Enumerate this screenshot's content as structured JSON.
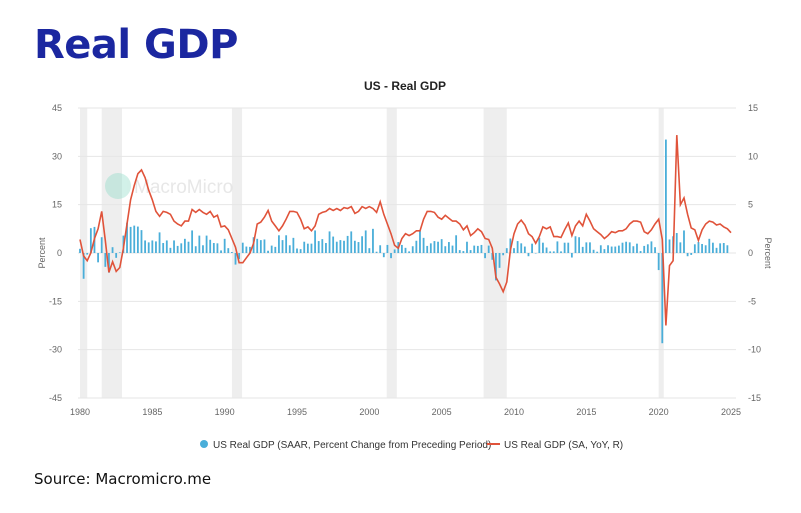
{
  "page": {
    "heading": "Real GDP",
    "source": "Source: Macromicro.me",
    "watermark": "MacroMicro"
  },
  "chart_data": {
    "type": "bar+line",
    "title": "US - Real GDP",
    "ylabel_left": "Percent",
    "ylabel_right": "Percent",
    "ylim_left": [
      -45,
      45
    ],
    "ylim_right": [
      -15,
      15
    ],
    "yticks_left": [
      "45",
      "30",
      "15",
      "0",
      "-15",
      "-30",
      "-45"
    ],
    "yticks_right": [
      "15",
      "10",
      "5",
      "0",
      "-5",
      "-10",
      "-15"
    ],
    "xlim": [
      1980,
      2025.5
    ],
    "xticks": [
      "1980",
      "1985",
      "1990",
      "1995",
      "2000",
      "2005",
      "2010",
      "2015",
      "2020",
      "2025"
    ],
    "grid": true,
    "legend_position": "bottom",
    "colors": {
      "bars": "#4aaed9",
      "line": "#e0533a",
      "recession": "#eeeeee",
      "grid": "#e6e6e6"
    },
    "recessions": [
      [
        1980.0,
        1980.5
      ],
      [
        1981.5,
        1982.9
      ],
      [
        1990.5,
        1991.2
      ],
      [
        2001.2,
        2001.9
      ],
      [
        2007.9,
        2009.5
      ],
      [
        2020.0,
        2020.35
      ]
    ],
    "series": [
      {
        "name": "US Real GDP (SAAR, Percent Change from Preceding Period)",
        "type": "bar",
        "axis": "left",
        "start": 1980,
        "step": 0.25,
        "values": [
          1.3,
          -8,
          -0.5,
          7.7,
          8.1,
          -2.9,
          4.9,
          -4.3,
          -6.1,
          1.8,
          -1.5,
          0.2,
          5.4,
          9.4,
          8.1,
          8.5,
          8.2,
          7.1,
          3.9,
          3.3,
          3.9,
          3.6,
          6.4,
          3.1,
          3.9,
          1.6,
          3.9,
          2.2,
          3.0,
          4.4,
          3.5,
          7.0,
          2.1,
          5.4,
          2.4,
          5.4,
          4.1,
          3.1,
          3.0,
          0.8,
          4.4,
          1.5,
          0.3,
          -3.6,
          -1.9,
          3.2,
          2.0,
          1.9,
          4.9,
          4.4,
          4.0,
          4.2,
          0.7,
          2.3,
          1.9,
          5.5,
          4.0,
          5.5,
          2.4,
          4.7,
          1.4,
          1.2,
          3.5,
          2.9,
          2.9,
          7.0,
          3.7,
          4.3,
          3.1,
          6.7,
          5.1,
          3.5,
          4.0,
          3.8,
          5.3,
          6.7,
          3.8,
          3.4,
          5.2,
          7.0,
          1.5,
          7.5,
          0.4,
          2.4,
          -1.3,
          2.5,
          -1.6,
          1.1,
          3.4,
          2.5,
          1.6,
          0.5,
          2.1,
          3.8,
          6.8,
          4.7,
          2.2,
          3.0,
          3.7,
          3.5,
          4.3,
          2.1,
          3.4,
          2.3,
          5.5,
          0.9,
          0.6,
          3.5,
          0.9,
          2.3,
          2.2,
          2.5,
          -1.6,
          2.3,
          -2.1,
          -8.5,
          -4.6,
          -0.7,
          1.5,
          4.5,
          1.5,
          3.7,
          3.0,
          2.0,
          -1.0,
          2.9,
          -0.1,
          4.7,
          3.2,
          1.7,
          0.5,
          0.5,
          3.6,
          0.5,
          3.2,
          3.2,
          -1.4,
          5.2,
          4.9,
          1.9,
          3.3,
          3.3,
          1.0,
          0.4,
          2.4,
          1.2,
          2.4,
          2.0,
          2.0,
          2.3,
          3.2,
          3.5,
          3.3,
          2.1,
          2.9,
          0.6,
          2.2,
          2.7,
          3.6,
          1.8,
          -5.3,
          -28.0,
          35.2,
          4.2,
          5.2,
          6.2,
          3.3,
          7.0,
          -1.0,
          -0.6,
          2.7,
          3.4,
          2.8,
          2.4,
          4.4,
          3.2,
          1.6,
          3.0,
          3.1,
          2.4
        ]
      },
      {
        "name": "US Real GDP (SA, YoY, R)",
        "type": "line",
        "axis": "right",
        "start": 1980,
        "step": 0.25,
        "values": [
          1.4,
          -0.3,
          -0.8,
          0.0,
          1.5,
          2.5,
          4.3,
          1.3,
          -2.0,
          -0.9,
          -1.9,
          -1.5,
          0.5,
          3.0,
          5.5,
          7.0,
          8.2,
          8.6,
          7.8,
          6.5,
          5.5,
          4.3,
          3.8,
          4.3,
          4.2,
          4.0,
          3.3,
          3.0,
          2.8,
          3.3,
          3.3,
          4.5,
          4.2,
          4.5,
          4.2,
          4.0,
          4.3,
          3.7,
          3.9,
          2.7,
          2.8,
          2.4,
          1.5,
          0.6,
          -1.0,
          -1.0,
          -0.5,
          0.0,
          1.0,
          3.0,
          3.2,
          3.7,
          4.4,
          3.3,
          2.8,
          2.3,
          2.8,
          3.5,
          4.3,
          4.3,
          4.2,
          3.5,
          2.5,
          2.7,
          2.3,
          2.8,
          4.0,
          4.2,
          4.3,
          4.6,
          4.4,
          4.6,
          4.4,
          4.7,
          4.6,
          4.8,
          4.1,
          4.3,
          4.8,
          4.6,
          4.8,
          4.6,
          4.2,
          5.3,
          4.0,
          3.0,
          2.0,
          0.8,
          0.5,
          1.5,
          2.0,
          1.8,
          2.0,
          2.3,
          2.3,
          3.5,
          4.3,
          4.3,
          4.2,
          3.7,
          3.5,
          3.9,
          3.6,
          3.3,
          3.3,
          3.0,
          2.4,
          2.8,
          1.8,
          2.1,
          2.5,
          2.2,
          1.5,
          1.4,
          0.5,
          -2.5,
          -3.2,
          -4.0,
          -3.0,
          0.3,
          2.0,
          3.0,
          3.4,
          2.9,
          2.0,
          1.7,
          1.0,
          1.7,
          2.7,
          2.5,
          2.7,
          1.7,
          1.7,
          1.6,
          2.4,
          3.1,
          1.8,
          2.8,
          3.3,
          2.8,
          4.0,
          3.3,
          2.5,
          2.2,
          1.9,
          1.5,
          1.8,
          2.2,
          2.1,
          2.3,
          2.3,
          2.5,
          3.0,
          3.3,
          3.3,
          3.2,
          2.2,
          2.0,
          2.4,
          3.0,
          3.5,
          1.4,
          -7.5,
          -1.3,
          -0.8,
          12.2,
          5.0,
          5.7,
          4.0,
          2.6,
          2.4,
          1.3,
          2.4,
          3.0,
          3.3,
          3.2,
          2.9,
          3.0,
          2.7,
          2.5,
          2.1
        ]
      }
    ]
  }
}
